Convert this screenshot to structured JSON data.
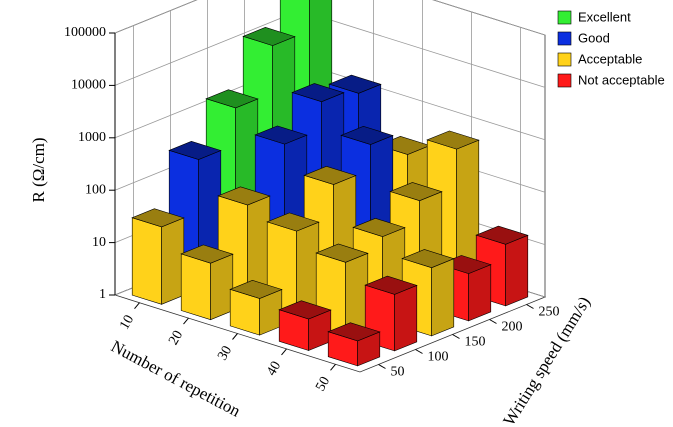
{
  "chart_data": {
    "type": "bar3d",
    "zlabel": "R (Ω/cm)",
    "xlabel": "Number of repetition",
    "ylabel": "Writing speed (mm/s)",
    "x": [
      10,
      20,
      30,
      40,
      50
    ],
    "y": [
      50,
      100,
      150,
      200,
      250
    ],
    "zlim": [
      1,
      100000
    ],
    "zticks": [
      1,
      10,
      100,
      1000,
      10000,
      100000
    ],
    "zlog": true,
    "grid": true,
    "legend": [
      {
        "name": "Excellent",
        "color": "#33ee33"
      },
      {
        "name": "Good",
        "color": "#0b2fe0"
      },
      {
        "name": "Acceptable",
        "color": "#ffd21a"
      },
      {
        "name": "Not acceptable",
        "color": "#ff1a1a"
      }
    ],
    "values": [
      [
        30,
        300,
        1500,
        12000,
        60000
      ],
      [
        12,
        80,
        600,
        2000,
        1500
      ],
      [
        5,
        50,
        200,
        600,
        200
      ],
      [
        4,
        25,
        40,
        100,
        500
      ],
      [
        3,
        12,
        20,
        8,
        15
      ]
    ],
    "class": [
      [
        2,
        1,
        0,
        0,
        0
      ],
      [
        2,
        2,
        1,
        1,
        1
      ],
      [
        2,
        2,
        2,
        1,
        2
      ],
      [
        3,
        2,
        2,
        2,
        2
      ],
      [
        3,
        3,
        2,
        3,
        3
      ]
    ]
  }
}
